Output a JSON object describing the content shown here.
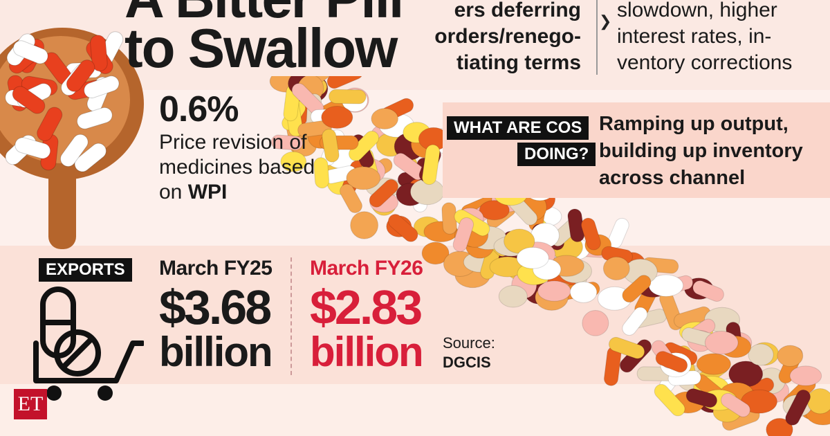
{
  "title": {
    "line1": "A Bitter Pill",
    "line2": "to Swallow"
  },
  "top_left_text": [
    "ers deferring",
    "orders/renego-",
    "tiating terms"
  ],
  "top_right_text": [
    "slowdown, higher",
    "interest rates, in-",
    "ventory corrections"
  ],
  "price_revision": {
    "value": "0.6%",
    "description": "Price revision of medicines based on",
    "description_bold": "WPI"
  },
  "companies": {
    "question_line1": "WHAT ARE COS",
    "question_line2": "DOING?",
    "answer": "Ramping up output, building up inventory across channel"
  },
  "exports": {
    "label": "EXPORTS",
    "items": [
      {
        "period": "March FY25",
        "value": "$3.68",
        "unit": "billion"
      },
      {
        "period": "March FY26",
        "value": "$2.83",
        "unit": "billion"
      }
    ]
  },
  "source": {
    "label": "Source:",
    "name": "DGCIS"
  },
  "logo": {
    "text": "ET"
  },
  "colors": {
    "accent_red": "#d81f3a",
    "pill_orange": "#f08a2c",
    "pill_yellow": "#f6c544",
    "background": "#fbe6df"
  }
}
